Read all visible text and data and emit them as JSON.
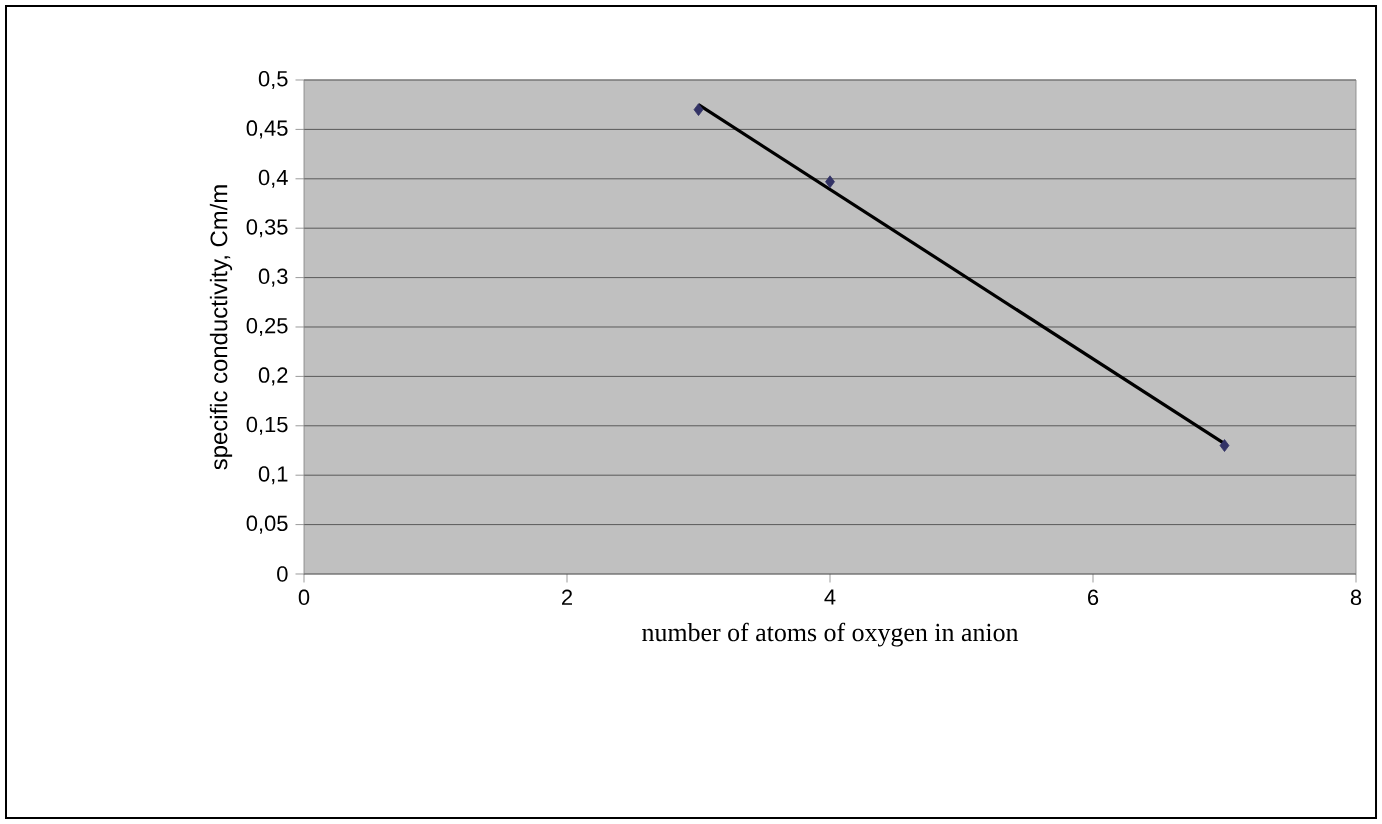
{
  "chart_data": {
    "type": "scatter",
    "xlabel": "number of atoms of oxygen in anion",
    "ylabel": "specific conductivity, Cm/m",
    "xlim": [
      0,
      8
    ],
    "xticks": [
      0,
      2,
      4,
      6,
      8
    ],
    "ylim": [
      0,
      0.5
    ],
    "yticks": [
      {
        "value": 0,
        "label": "0"
      },
      {
        "value": 0.05,
        "label": "0,05"
      },
      {
        "value": 0.1,
        "label": "0,1"
      },
      {
        "value": 0.15,
        "label": "0,15"
      },
      {
        "value": 0.2,
        "label": "0,2"
      },
      {
        "value": 0.25,
        "label": "0,25"
      },
      {
        "value": 0.3,
        "label": "0,3"
      },
      {
        "value": 0.35,
        "label": "0,35"
      },
      {
        "value": 0.4,
        "label": "0,4"
      },
      {
        "value": 0.45,
        "label": "0,45"
      },
      {
        "value": 0.5,
        "label": "0,5"
      }
    ],
    "grid": "y",
    "series": [
      {
        "color": "#333366",
        "marker": "diamond",
        "x": [
          3,
          4,
          7
        ],
        "values": [
          0.47,
          0.397,
          0.13
        ]
      },
      {
        "type": "line",
        "color": "#000000",
        "marker": "none",
        "line_style": "solid",
        "x": [
          3,
          7
        ],
        "values": [
          0.475,
          0.132
        ]
      }
    ]
  }
}
